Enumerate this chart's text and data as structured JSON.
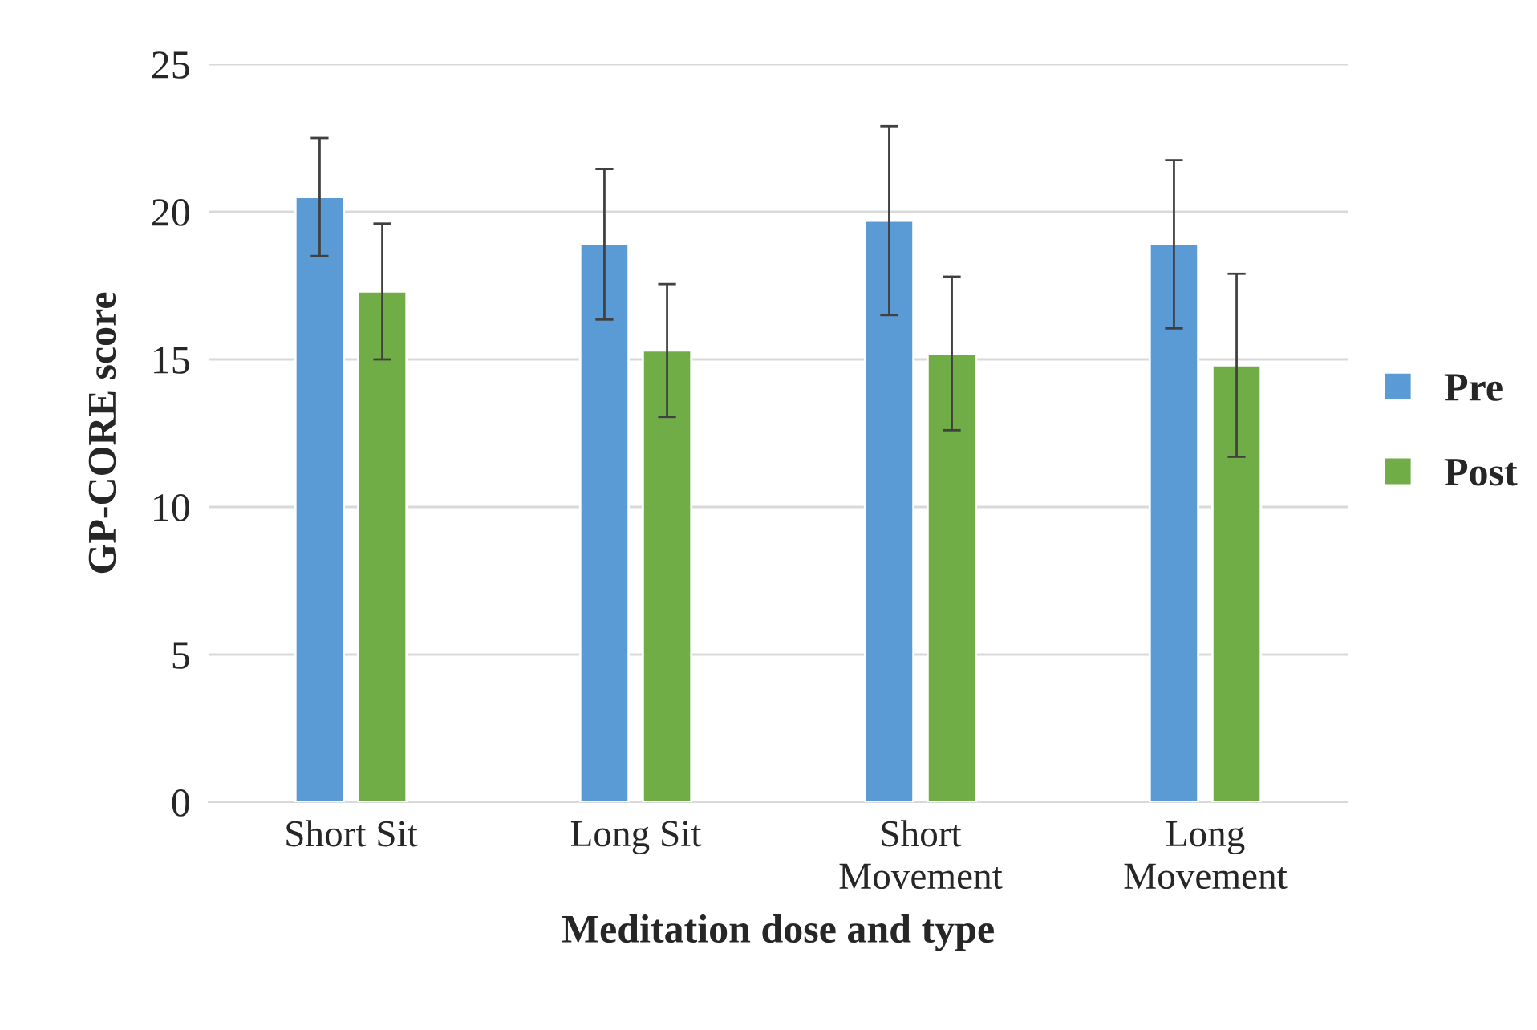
{
  "chart_data": {
    "type": "bar",
    "xlabel": "Meditation dose and type",
    "ylabel": "GP-CORE score",
    "categories": [
      "Short Sit",
      "Long Sit",
      "Short\nMovement",
      "Long\nMovement"
    ],
    "series": [
      {
        "name": "Pre",
        "color": "#5b9bd5",
        "values": [
          20.5,
          18.9,
          19.7,
          18.9
        ],
        "errors": [
          2.0,
          2.55,
          3.2,
          2.85
        ]
      },
      {
        "name": "Post",
        "color": "#70ad47",
        "values": [
          17.3,
          15.3,
          15.2,
          14.8
        ],
        "errors": [
          2.3,
          2.25,
          2.6,
          3.1
        ]
      }
    ],
    "ylim": [
      0,
      25
    ],
    "yticks": [
      0,
      5,
      10,
      15,
      20,
      25
    ],
    "grid": "y",
    "legend": "right"
  }
}
